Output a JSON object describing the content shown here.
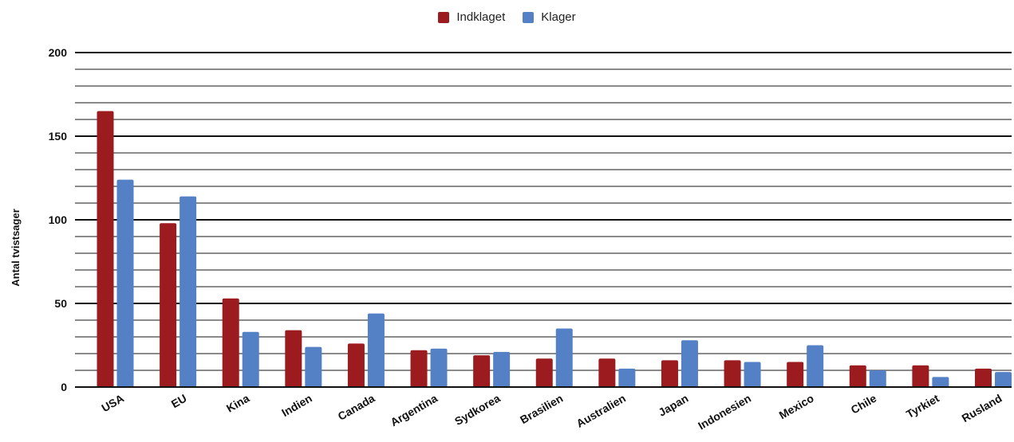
{
  "chart_data": {
    "type": "bar",
    "title": "",
    "xlabel": "",
    "ylabel": "Antal tvistsager",
    "ylim": [
      0,
      200
    ],
    "yticks": [
      0,
      50,
      100,
      150,
      200
    ],
    "grid": true,
    "legend_position": "top-center",
    "categories": [
      "USA",
      "EU",
      "Kina",
      "Indien",
      "Canada",
      "Argentina",
      "Sydkorea",
      "Brasilien",
      "Australien",
      "Japan",
      "Indonesien",
      "Mexico",
      "Chile",
      "Tyrkiet",
      "Rusland"
    ],
    "series": [
      {
        "name": "Indklaget",
        "color": "#9b1b1e",
        "values": [
          165,
          98,
          53,
          34,
          26,
          22,
          19,
          17,
          17,
          16,
          16,
          15,
          13,
          13,
          11
        ]
      },
      {
        "name": "Klager",
        "color": "#5480c6",
        "values": [
          124,
          114,
          33,
          24,
          44,
          23,
          21,
          35,
          11,
          28,
          15,
          25,
          10,
          6,
          9
        ]
      }
    ]
  }
}
